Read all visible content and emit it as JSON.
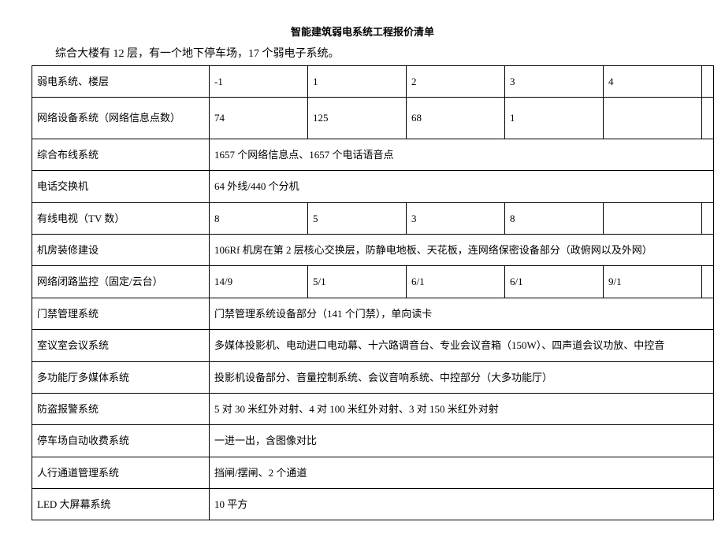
{
  "document": {
    "title": "智能建筑弱电系统工程报价清单",
    "subtitle": "综合大楼有 12 层，有一个地下停车场，17 个弱电子系统。"
  },
  "table": {
    "header": {
      "label": "弱电系统、楼层",
      "col_neg1": "-1",
      "col_1": "1",
      "col_2": "2",
      "col_3": "3",
      "col_4": "4"
    },
    "rows": {
      "network_device": {
        "label": "网络设备系统（网络信息点数）",
        "c_neg1": "74",
        "c_1": "125",
        "c_2": "68",
        "c_3": "1",
        "c_4": ""
      },
      "wiring": {
        "label": "综合布线系统",
        "merged": "1657 个网络信息点、1657 个电话语音点"
      },
      "pbx": {
        "label": "电话交换机",
        "merged": "64 外线/440 个分机"
      },
      "catv": {
        "label": "有线电视（TV 数）",
        "c_neg1": "8",
        "c_1": "5",
        "c_2": "3",
        "c_3": "8",
        "c_4": ""
      },
      "server_room": {
        "label": "机房装修建设",
        "merged": "106Rf 机房在第 2 层核心交换层，防静电地板、天花板，连网络保密设备部分（政俯网以及外网）"
      },
      "cctv": {
        "label": "网络闭路监控（固定/云台）",
        "c_neg1": "14/9",
        "c_1": "5/1",
        "c_2": "6/1",
        "c_3": "6/1",
        "c_4": "9/1"
      },
      "access_control": {
        "label": "门禁管理系统",
        "merged": "门禁管理系统设备部分（141 个门禁），单向读卡"
      },
      "meeting_room": {
        "label": "室议室会议系统",
        "merged": "多媒体投影机、电动进口电动幕、十六路调音台、专业会议音箱（150W）、四声道会议功放、中控音"
      },
      "multifunction": {
        "label": "多功能厅多媒体系统",
        "merged": "投影机设备部分、音量控制系统、会议音响系统、中控部分（大多功能厅）"
      },
      "burglar": {
        "label": "防盗报警系统",
        "merged": "5 对 30 米红外对射、4 对 100 米红外对射、3 对 150 米红外对射"
      },
      "parking": {
        "label": "停车场自动收费系统",
        "merged": "一进一出，含图像对比"
      },
      "pedestrian": {
        "label": "人行通道管理系统",
        "merged": "挡闸/摆闸、2 个通道"
      },
      "led_screen": {
        "label": "LED 大屏幕系统",
        "merged": "10 平方"
      }
    }
  },
  "style": {
    "font_family": "SimSun",
    "border_color": "#000000",
    "background_color": "#ffffff",
    "title_fontsize": 13,
    "subtitle_fontsize": 14,
    "cell_fontsize": 13,
    "col_label_width": 225,
    "col_data_width": 125
  }
}
